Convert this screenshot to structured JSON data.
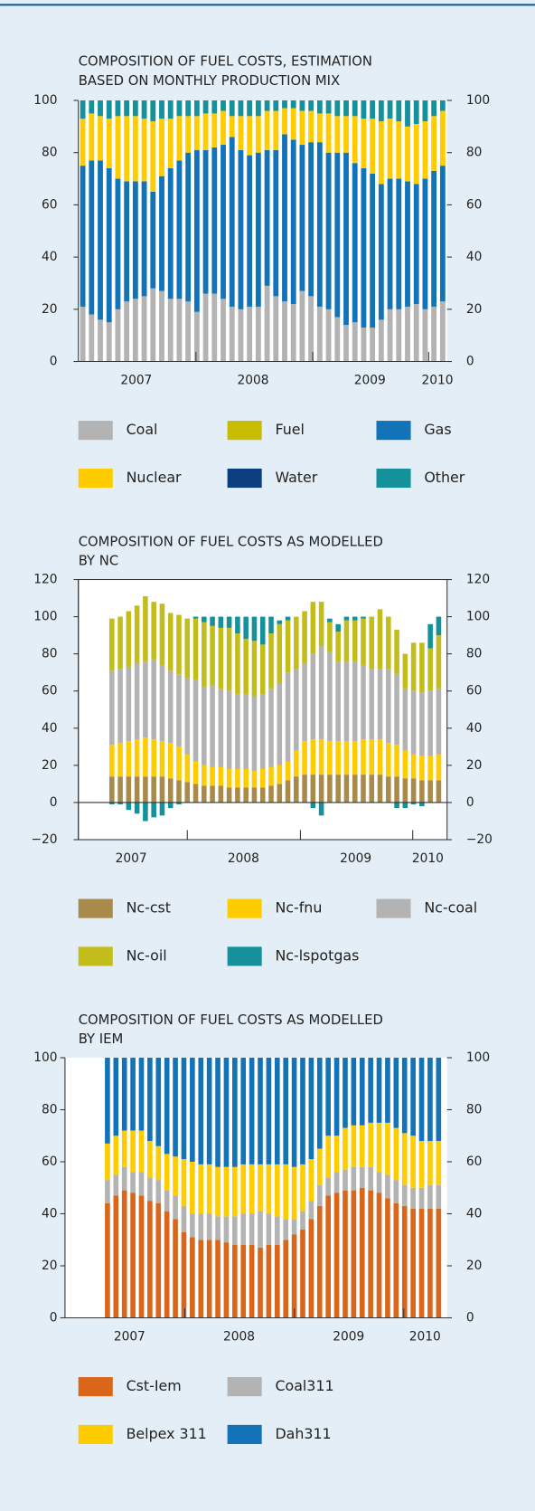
{
  "chart_data": [
    {
      "type": "stacked_bar",
      "title": [
        "COMPOSITION OF FUEL COSTS, ESTIMATION",
        "BASED ON MONTHLY PRODUCTION MIX"
      ],
      "ylim": [
        0,
        100
      ],
      "yticks": [
        0,
        20,
        40,
        60,
        80,
        100
      ],
      "xlim": [
        -0.5,
        41.5
      ],
      "xticks": [
        12.9,
        26.2,
        39.4
      ],
      "xtick_labels": [
        {
          "value": 6.1,
          "label": "2007"
        },
        {
          "value": 19.4,
          "label": "2008"
        },
        {
          "value": 32.7,
          "label": "2009"
        },
        {
          "value": 40.4,
          "label": "2010"
        }
      ],
      "series": [
        {
          "name": "Coal",
          "color": "#b3b3b3",
          "values": [
            21,
            18,
            16,
            15,
            20,
            23,
            24,
            25,
            28,
            27,
            24,
            24,
            23,
            19,
            26,
            26,
            24,
            21,
            20,
            21,
            21,
            29,
            25,
            23,
            22,
            27,
            25,
            21,
            20,
            17,
            14,
            15,
            13,
            13,
            16,
            20,
            20,
            21,
            22,
            20,
            21,
            23
          ]
        },
        {
          "name": "Fuel",
          "color": "#c8bc00",
          "values": [
            0,
            0,
            0,
            0,
            0,
            0,
            0,
            0,
            0,
            0,
            0,
            0,
            0,
            0,
            0,
            0,
            0,
            0,
            0,
            0,
            0,
            0,
            0,
            0,
            0,
            0,
            0,
            0,
            0,
            0,
            0,
            0,
            0,
            0,
            0,
            0,
            0,
            0,
            0,
            0,
            0,
            0
          ]
        },
        {
          "name": "Gas",
          "color": "#1273b9",
          "values": [
            54,
            59,
            61,
            59,
            50,
            46,
            45,
            44,
            37,
            44,
            50,
            53,
            57,
            62,
            55,
            56,
            59,
            65,
            61,
            58,
            59,
            52,
            56,
            64,
            63,
            56,
            59,
            63,
            60,
            63,
            66,
            61,
            61,
            59,
            52,
            50,
            50,
            48,
            46,
            50,
            52,
            52
          ]
        },
        {
          "name": "Nuclear",
          "color": "#ffcc00",
          "values": [
            18,
            18,
            17,
            19,
            24,
            25,
            25,
            24,
            27,
            22,
            19,
            17,
            14,
            13,
            14,
            13,
            13,
            8,
            13,
            15,
            14,
            15,
            15,
            10,
            12,
            13,
            12,
            11,
            15,
            14,
            14,
            18,
            19,
            21,
            24,
            23,
            22,
            21,
            23,
            22,
            21,
            21
          ]
        },
        {
          "name": "Water",
          "color": "#0b3f80",
          "values": [
            0,
            0,
            0,
            0,
            0,
            0,
            0,
            0,
            0,
            0,
            0,
            0,
            0,
            0,
            0,
            0,
            0,
            0,
            0,
            0,
            0,
            0,
            0,
            0,
            0,
            0,
            0,
            0,
            0,
            0,
            0,
            0,
            0,
            0,
            0,
            0,
            0,
            0,
            0,
            0,
            0,
            0
          ]
        },
        {
          "name": "Other",
          "color": "#14919b",
          "values": [
            7,
            5,
            6,
            7,
            6,
            6,
            6,
            7,
            8,
            7,
            7,
            6,
            6,
            6,
            5,
            5,
            4,
            6,
            6,
            6,
            6,
            4,
            4,
            3,
            3,
            4,
            4,
            5,
            5,
            6,
            6,
            6,
            7,
            7,
            8,
            7,
            8,
            10,
            9,
            8,
            6,
            4
          ]
        }
      ]
    },
    {
      "type": "stacked_bar",
      "title": [
        "COMPOSITION OF FUEL COSTS AS MODELLED",
        "BY NC"
      ],
      "ylim": [
        -20,
        120
      ],
      "yticks": [
        {
          "value": -20,
          "label": "−20"
        },
        0,
        20,
        40,
        60,
        80,
        100,
        120
      ],
      "xlim": [
        -4,
        40
      ],
      "xticks": [
        9.0,
        22.5,
        35.9
      ],
      "xtick_labels": [
        {
          "value": 2.3,
          "label": "2007"
        },
        {
          "value": 15.7,
          "label": "2008"
        },
        {
          "value": 29.1,
          "label": "2009"
        },
        {
          "value": 37.7,
          "label": "2010"
        }
      ],
      "series": [
        {
          "name": "Nc-cst",
          "color": "#a88a4a",
          "values": [
            14,
            14,
            14,
            14,
            14,
            14,
            14,
            13,
            12,
            11,
            10,
            9,
            9,
            9,
            8,
            8,
            8,
            8,
            8,
            9,
            10,
            12,
            14,
            15,
            15,
            15,
            15,
            15,
            15,
            15,
            15,
            15,
            15,
            14,
            14,
            13,
            13,
            12,
            12,
            12
          ]
        },
        {
          "name": "Nc-fnu",
          "color": "#ffcc00",
          "values": [
            17,
            18,
            19,
            20,
            21,
            20,
            19,
            19,
            18,
            15,
            12,
            11,
            10,
            10,
            10,
            10,
            10,
            9,
            10,
            10,
            10,
            10,
            14,
            18,
            19,
            19,
            18,
            18,
            18,
            18,
            19,
            19,
            19,
            18,
            17,
            15,
            13,
            13,
            13,
            14
          ]
        },
        {
          "name": "Nc-coal",
          "color": "#b3b3b3",
          "values": [
            40,
            40,
            40,
            41,
            41,
            43,
            41,
            39,
            39,
            41,
            44,
            42,
            44,
            42,
            42,
            40,
            40,
            40,
            40,
            42,
            44,
            48,
            44,
            42,
            46,
            50,
            48,
            43,
            43,
            43,
            40,
            38,
            38,
            40,
            38,
            33,
            34,
            34,
            35,
            35
          ]
        },
        {
          "name": "Nc-oil",
          "color": "#c3bd1c",
          "values": [
            28,
            28,
            30,
            31,
            35,
            31,
            33,
            31,
            32,
            32,
            33,
            35,
            32,
            33,
            34,
            33,
            30,
            30,
            27,
            30,
            32,
            28,
            28,
            28,
            28,
            24,
            16,
            16,
            22,
            22,
            25,
            28,
            32,
            28,
            24,
            19,
            26,
            27,
            23,
            29
          ]
        },
        {
          "name": "Nc-lspotgas",
          "color": "#14919b",
          "values": [
            -1,
            -1,
            -4,
            -6,
            -10,
            -8,
            -7,
            -3,
            -1,
            0,
            1,
            3,
            5,
            6,
            6,
            9,
            12,
            13,
            15,
            9,
            2,
            2,
            0,
            0,
            -3,
            -7,
            2,
            4,
            2,
            2,
            1,
            0,
            0,
            0,
            -3,
            -3,
            -1,
            -2,
            13,
            10
          ]
        }
      ]
    },
    {
      "type": "stacked_bar",
      "title": [
        "COMPOSITION OF FUEL COSTS AS MODELLED",
        "BY IEM"
      ],
      "ylim": [
        0,
        100
      ],
      "yticks": [
        0,
        20,
        40,
        60,
        80,
        100
      ],
      "xlim": [
        -5,
        40
      ],
      "xticks": [
        9.1,
        22.0,
        34.9
      ],
      "xtick_labels": [
        {
          "value": 2.6,
          "label": "2007"
        },
        {
          "value": 15.5,
          "label": "2008"
        },
        {
          "value": 28.4,
          "label": "2009"
        },
        {
          "value": 37.4,
          "label": "2010"
        }
      ],
      "series": [
        {
          "name": "Cst-Iem",
          "color": "#d9661b",
          "values": [
            44,
            47,
            49,
            48,
            47,
            45,
            44,
            41,
            38,
            33,
            31,
            30,
            30,
            30,
            29,
            28,
            28,
            28,
            27,
            28,
            28,
            30,
            32,
            34,
            38,
            43,
            47,
            48,
            49,
            49,
            50,
            49,
            48,
            46,
            44,
            43,
            42,
            42,
            42,
            42
          ]
        },
        {
          "name": "Coal311",
          "color": "#b3b3b3",
          "values": [
            9,
            8,
            9,
            8,
            9,
            9,
            9,
            8,
            9,
            10,
            9,
            10,
            10,
            9,
            10,
            11,
            12,
            12,
            14,
            12,
            11,
            8,
            6,
            7,
            7,
            8,
            7,
            8,
            8,
            9,
            8,
            9,
            8,
            9,
            9,
            8,
            8,
            8,
            9,
            9
          ]
        },
        {
          "name": "Belpex 311",
          "color": "#ffcc00",
          "values": [
            14,
            15,
            14,
            16,
            16,
            14,
            13,
            14,
            15,
            18,
            20,
            19,
            19,
            19,
            19,
            19,
            19,
            19,
            18,
            19,
            20,
            21,
            20,
            18,
            16,
            14,
            16,
            14,
            16,
            16,
            16,
            17,
            19,
            20,
            20,
            20,
            20,
            18,
            17,
            17
          ]
        },
        {
          "name": "Dah311",
          "color": "#1273b9",
          "values": [
            33,
            30,
            28,
            28,
            28,
            32,
            34,
            37,
            38,
            39,
            40,
            41,
            41,
            42,
            42,
            42,
            41,
            41,
            41,
            41,
            41,
            41,
            42,
            41,
            39,
            35,
            30,
            30,
            27,
            26,
            26,
            25,
            25,
            25,
            27,
            29,
            30,
            32,
            32,
            32
          ]
        }
      ]
    }
  ]
}
